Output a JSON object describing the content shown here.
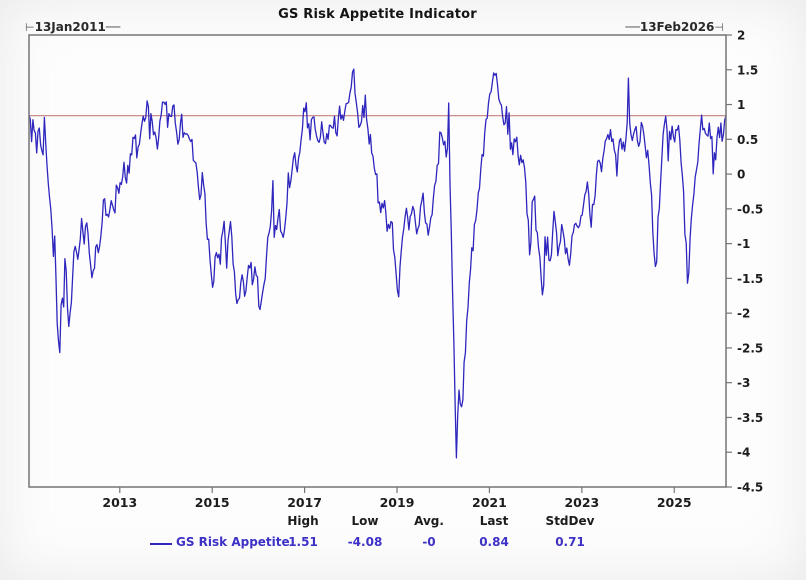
{
  "header": {
    "title": "GS Risk Appetite Indicator",
    "start_date": "13Jan2011",
    "end_date": "13Feb2026"
  },
  "legend": {
    "headers": [
      "High",
      "Low",
      "Avg.",
      "Last",
      "StdDev"
    ],
    "series_label": "GS Risk Appetite",
    "values": [
      "1.51",
      "-4.08",
      "-0",
      "0.84",
      "0.71"
    ]
  },
  "colors": {
    "series_line": "#2e26bd",
    "legend_text": "#3d31c6",
    "reference_line": "#c5807c",
    "frame": "#757578",
    "label_text": "#1c1c1c"
  },
  "chart_data": {
    "type": "line",
    "title": "GS Risk Appetite Indicator",
    "xlabel": "",
    "ylabel": "",
    "x_range": [
      2011.035,
      2026.12
    ],
    "ylim": [
      -4.5,
      2
    ],
    "grid": false,
    "legend_position": "bottom",
    "x_ticks": [
      2013,
      2015,
      2017,
      2019,
      2021,
      2023,
      2025
    ],
    "x_tick_labels": [
      "2013",
      "2015",
      "2017",
      "2019",
      "2021",
      "2023",
      "2025"
    ],
    "y_ticks": [
      2,
      1.5,
      1,
      0.5,
      0,
      -0.5,
      -1,
      -1.5,
      -2,
      -2.5,
      -3,
      -3.5,
      -4,
      -4.5
    ],
    "y_tick_labels": [
      "2",
      "1.5",
      "1",
      "0.5",
      "0",
      "-0.5",
      "-1",
      "-1.5",
      "-2",
      "-2.5",
      "-3",
      "-3.5",
      "-4",
      "-4.5"
    ],
    "reference_line": {
      "value": 0.84,
      "color": "#c5807c",
      "meaning": "last value"
    },
    "noise": {
      "seed": 13,
      "amplitude": 0.14,
      "points_per_year": 36,
      "spike_chance": 0.05,
      "spike_amplitude": 0.55
    },
    "pins": [
      [
        2011.035,
        0.85
      ],
      [
        2018.06,
        1.51
      ],
      [
        2020.29,
        -4.08
      ],
      [
        2026.12,
        0.84
      ]
    ],
    "series": [
      {
        "name": "GS Risk Appetite",
        "color": "#2e26bd",
        "high": 1.51,
        "low": -4.08,
        "avg": 0,
        "last": 0.84,
        "stddev": 0.71,
        "anchors": [
          [
            2011.035,
            0.85
          ],
          [
            2011.1,
            0.55
          ],
          [
            2011.14,
            0.78
          ],
          [
            2011.2,
            0.35
          ],
          [
            2011.26,
            0.62
          ],
          [
            2011.32,
            0.3
          ],
          [
            2011.38,
            0.55
          ],
          [
            2011.44,
            0.1
          ],
          [
            2011.5,
            -0.45
          ],
          [
            2011.56,
            -1.2
          ],
          [
            2011.6,
            -0.85
          ],
          [
            2011.64,
            -2.0
          ],
          [
            2011.7,
            -2.5
          ],
          [
            2011.74,
            -1.6
          ],
          [
            2011.78,
            -2.1
          ],
          [
            2011.84,
            -1.4
          ],
          [
            2011.9,
            -2.3
          ],
          [
            2011.96,
            -1.7
          ],
          [
            2012.02,
            -1.1
          ],
          [
            2012.1,
            -1.4
          ],
          [
            2012.17,
            -0.5
          ],
          [
            2012.24,
            -0.95
          ],
          [
            2012.3,
            -0.55
          ],
          [
            2012.36,
            -1.3
          ],
          [
            2012.42,
            -1.55
          ],
          [
            2012.48,
            -0.95
          ],
          [
            2012.54,
            -1.35
          ],
          [
            2012.6,
            -0.7
          ],
          [
            2012.68,
            -0.35
          ],
          [
            2012.74,
            -0.75
          ],
          [
            2012.8,
            -0.25
          ],
          [
            2012.88,
            -0.6
          ],
          [
            2012.94,
            -0.15
          ],
          [
            2013.0,
            -0.3
          ],
          [
            2013.08,
            0.2
          ],
          [
            2013.16,
            -0.05
          ],
          [
            2013.24,
            0.3
          ],
          [
            2013.32,
            0.5
          ],
          [
            2013.4,
            0.25
          ],
          [
            2013.48,
            0.65
          ],
          [
            2013.56,
            0.9
          ],
          [
            2013.64,
            1.1
          ],
          [
            2013.72,
            0.6
          ],
          [
            2013.8,
            0.38
          ],
          [
            2013.88,
            0.75
          ],
          [
            2013.96,
            1.08
          ],
          [
            2014.04,
            0.8
          ],
          [
            2014.1,
            1.0
          ],
          [
            2014.18,
            0.85
          ],
          [
            2014.26,
            0.55
          ],
          [
            2014.34,
            0.78
          ],
          [
            2014.42,
            0.45
          ],
          [
            2014.5,
            0.62
          ],
          [
            2014.58,
            0.35
          ],
          [
            2014.66,
            0.15
          ],
          [
            2014.72,
            -0.3
          ],
          [
            2014.8,
            0.0
          ],
          [
            2014.88,
            -0.7
          ],
          [
            2014.96,
            -1.2
          ],
          [
            2015.02,
            -1.85
          ],
          [
            2015.08,
            -1.0
          ],
          [
            2015.16,
            -1.35
          ],
          [
            2015.24,
            -0.65
          ],
          [
            2015.32,
            -1.05
          ],
          [
            2015.4,
            -0.8
          ],
          [
            2015.48,
            -1.45
          ],
          [
            2015.56,
            -1.95
          ],
          [
            2015.64,
            -1.4
          ],
          [
            2015.72,
            -1.75
          ],
          [
            2015.8,
            -1.2
          ],
          [
            2015.88,
            -1.6
          ],
          [
            2015.96,
            -1.35
          ],
          [
            2016.04,
            -2.1
          ],
          [
            2016.12,
            -1.6
          ],
          [
            2016.2,
            -1.05
          ],
          [
            2016.28,
            -0.6
          ],
          [
            2016.36,
            -0.9
          ],
          [
            2016.44,
            -0.55
          ],
          [
            2016.52,
            -1.05
          ],
          [
            2016.6,
            -0.5
          ],
          [
            2016.68,
            -0.15
          ],
          [
            2016.76,
            0.25
          ],
          [
            2016.84,
            0.1
          ],
          [
            2016.92,
            0.55
          ],
          [
            2017.0,
            1.05
          ],
          [
            2017.06,
            0.8
          ],
          [
            2017.12,
            0.55
          ],
          [
            2017.2,
            0.88
          ],
          [
            2017.28,
            0.5
          ],
          [
            2017.36,
            0.7
          ],
          [
            2017.44,
            0.4
          ],
          [
            2017.52,
            0.62
          ],
          [
            2017.6,
            0.82
          ],
          [
            2017.68,
            0.6
          ],
          [
            2017.76,
            0.88
          ],
          [
            2017.84,
            0.68
          ],
          [
            2017.92,
            1.02
          ],
          [
            2018.0,
            1.32
          ],
          [
            2018.06,
            1.49
          ],
          [
            2018.12,
            0.95
          ],
          [
            2018.18,
            0.6
          ],
          [
            2018.24,
            0.92
          ],
          [
            2018.32,
            0.78
          ],
          [
            2018.4,
            0.55
          ],
          [
            2018.48,
            0.3
          ],
          [
            2018.56,
            -0.1
          ],
          [
            2018.64,
            -0.55
          ],
          [
            2018.72,
            -0.35
          ],
          [
            2018.8,
            -0.9
          ],
          [
            2018.88,
            -0.6
          ],
          [
            2018.96,
            -1.35
          ],
          [
            2019.02,
            -1.78
          ],
          [
            2019.1,
            -1.0
          ],
          [
            2019.18,
            -0.45
          ],
          [
            2019.26,
            -0.75
          ],
          [
            2019.34,
            -0.32
          ],
          [
            2019.42,
            -1.0
          ],
          [
            2019.5,
            -0.55
          ],
          [
            2019.58,
            -0.35
          ],
          [
            2019.66,
            -0.95
          ],
          [
            2019.74,
            -0.55
          ],
          [
            2019.82,
            -0.12
          ],
          [
            2019.9,
            0.42
          ],
          [
            2019.98,
            0.6
          ],
          [
            2020.06,
            0.35
          ],
          [
            2020.12,
            0.55
          ],
          [
            2020.16,
            -0.3
          ],
          [
            2020.2,
            -1.5
          ],
          [
            2020.24,
            -2.9
          ],
          [
            2020.29,
            -4.05
          ],
          [
            2020.34,
            -3.1
          ],
          [
            2020.4,
            -3.5
          ],
          [
            2020.46,
            -2.7
          ],
          [
            2020.54,
            -1.9
          ],
          [
            2020.62,
            -1.15
          ],
          [
            2020.7,
            -0.7
          ],
          [
            2020.78,
            -0.25
          ],
          [
            2020.86,
            0.3
          ],
          [
            2020.94,
            0.8
          ],
          [
            2021.02,
            1.15
          ],
          [
            2021.1,
            1.45
          ],
          [
            2021.16,
            1.3
          ],
          [
            2021.24,
            0.95
          ],
          [
            2021.32,
            0.78
          ],
          [
            2021.4,
            0.45
          ],
          [
            2021.48,
            0.32
          ],
          [
            2021.56,
            0.55
          ],
          [
            2021.64,
            0.2
          ],
          [
            2021.72,
            0.42
          ],
          [
            2021.8,
            -0.35
          ],
          [
            2021.88,
            -1.15
          ],
          [
            2021.94,
            -0.3
          ],
          [
            2022.02,
            -0.75
          ],
          [
            2022.1,
            -1.35
          ],
          [
            2022.16,
            -1.9
          ],
          [
            2022.24,
            -0.95
          ],
          [
            2022.32,
            -1.25
          ],
          [
            2022.4,
            -0.6
          ],
          [
            2022.48,
            -1.1
          ],
          [
            2022.56,
            -0.75
          ],
          [
            2022.64,
            -1.0
          ],
          [
            2022.72,
            -1.45
          ],
          [
            2022.8,
            -0.85
          ],
          [
            2022.88,
            -0.55
          ],
          [
            2022.96,
            -0.85
          ],
          [
            2023.04,
            -0.35
          ],
          [
            2023.12,
            -0.05
          ],
          [
            2023.2,
            -0.65
          ],
          [
            2023.28,
            -0.25
          ],
          [
            2023.36,
            0.22
          ],
          [
            2023.44,
            0.02
          ],
          [
            2023.52,
            0.42
          ],
          [
            2023.6,
            0.62
          ],
          [
            2023.68,
            0.4
          ],
          [
            2023.76,
            0.08
          ],
          [
            2023.84,
            0.48
          ],
          [
            2023.92,
            0.3
          ],
          [
            2024.0,
            0.78
          ],
          [
            2024.08,
            0.5
          ],
          [
            2024.16,
            0.68
          ],
          [
            2024.24,
            0.45
          ],
          [
            2024.32,
            0.72
          ],
          [
            2024.4,
            0.4
          ],
          [
            2024.48,
            0.0
          ],
          [
            2024.54,
            -0.9
          ],
          [
            2024.6,
            -1.55
          ],
          [
            2024.66,
            -0.55
          ],
          [
            2024.72,
            0.15
          ],
          [
            2024.79,
            0.78
          ],
          [
            2024.86,
            0.45
          ],
          [
            2024.94,
            0.62
          ],
          [
            2025.02,
            0.48
          ],
          [
            2025.08,
            0.68
          ],
          [
            2025.14,
            0.35
          ],
          [
            2025.2,
            -0.3
          ],
          [
            2025.25,
            -1.0
          ],
          [
            2025.3,
            -1.65
          ],
          [
            2025.36,
            -0.75
          ],
          [
            2025.44,
            -0.15
          ],
          [
            2025.52,
            0.35
          ],
          [
            2025.6,
            0.78
          ],
          [
            2025.68,
            0.45
          ],
          [
            2025.76,
            0.62
          ],
          [
            2025.84,
            0.38
          ],
          [
            2025.92,
            0.55
          ],
          [
            2026.0,
            0.62
          ],
          [
            2026.06,
            0.5
          ],
          [
            2026.12,
            0.84
          ]
        ]
      }
    ]
  }
}
